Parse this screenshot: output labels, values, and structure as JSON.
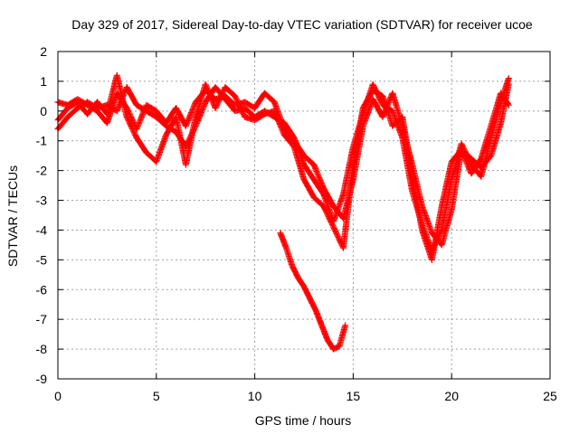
{
  "chart_data": {
    "type": "scatter",
    "title": "Day 329 of 2017, Sidereal Day-to-day VTEC variation (SDTVAR) for receiver ucoe",
    "xlabel": "GPS time / hours",
    "ylabel": "SDTVAR / TECUs",
    "xlim": [
      0,
      25
    ],
    "ylim": [
      -9,
      2
    ],
    "xticks": [
      "0",
      "5",
      "10",
      "15",
      "20",
      "25"
    ],
    "yticks": [
      "2",
      "1",
      "0",
      "-1",
      "-2",
      "-3",
      "-4",
      "-5",
      "-6",
      "-7",
      "-8",
      "-9"
    ],
    "grid": true,
    "marker": "+",
    "color": "#ff0000",
    "series": [
      {
        "x": [
          0,
          0.5,
          1,
          1.5,
          2,
          2.5,
          3,
          3.5,
          4,
          4.5,
          5,
          5.5,
          6,
          6.5,
          7,
          7.5,
          8,
          8.5,
          9,
          9.5,
          10,
          10.5,
          11,
          11.5,
          12,
          12.5,
          13,
          13.5,
          14,
          14.5,
          15,
          15.5,
          16,
          16.5,
          17,
          17.5,
          18,
          18.5,
          19,
          19.5,
          20,
          20.5,
          21,
          21.5,
          22,
          22.5,
          22.9
        ],
        "values": [
          0.3,
          0.2,
          0.4,
          0.2,
          0.0,
          -0.4,
          0.6,
          0.1,
          -0.6,
          0.2,
          0.0,
          -0.4,
          0.1,
          -0.5,
          0.3,
          0.7,
          0.4,
          0.5,
          0.2,
          0.3,
          0.1,
          0.6,
          0.3,
          -0.6,
          -1.0,
          -1.5,
          -1.8,
          -2.6,
          -3.2,
          -3.6,
          -2.3,
          -0.5,
          0.4,
          -0.2,
          0.6,
          -0.5,
          -1.8,
          -3.2,
          -4.1,
          -4.5,
          -3.3,
          -1.3,
          -1.6,
          -1.9,
          -1.5,
          -0.4,
          0.9
        ]
      },
      {
        "x": [
          0,
          0.5,
          1,
          1.5,
          2,
          2.5,
          3,
          3.5,
          4,
          4.5,
          5,
          5.5,
          6,
          6.5,
          7,
          7.5,
          8,
          8.5,
          9,
          9.5,
          10,
          10.5,
          11,
          11.5,
          12,
          12.5,
          13,
          13.5,
          14,
          14.5,
          15,
          15.5,
          16,
          16.5,
          17,
          17.5,
          18,
          18.5,
          19,
          19.5,
          20,
          20.5,
          21,
          21.5,
          22,
          22.5,
          22.9
        ],
        "values": [
          -0.6,
          -0.2,
          0.1,
          0.3,
          0.1,
          0.2,
          0.0,
          0.8,
          0.2,
          0.0,
          -0.2,
          -0.5,
          -0.7,
          -1.2,
          -0.5,
          0.3,
          0.8,
          0.4,
          0.0,
          0.1,
          -0.2,
          0.0,
          -0.2,
          -0.4,
          -0.9,
          -1.8,
          -2.3,
          -2.8,
          -3.7,
          -2.8,
          -1.2,
          -0.1,
          0.9,
          0.2,
          0.0,
          -0.9,
          -2.7,
          -3.8,
          -4.7,
          -4.0,
          -2.3,
          -1.1,
          -1.8,
          -2.2,
          -0.9,
          0.3,
          1.1
        ]
      },
      {
        "x": [
          0,
          0.5,
          1,
          1.5,
          2,
          2.5,
          3,
          3.5,
          4,
          4.5,
          5,
          5.5,
          6,
          6.5,
          7,
          7.5,
          8,
          8.5,
          9,
          9.5,
          10,
          10.5,
          11,
          11.5,
          12,
          12.5,
          13,
          13.5,
          14,
          14.5,
          15,
          15.5,
          16,
          16.5,
          17,
          17.5,
          18,
          18.5,
          19,
          19.5,
          20,
          20.5,
          21,
          21.5,
          22,
          22.5,
          22.9
        ],
        "values": [
          -0.3,
          0.1,
          0.3,
          -0.1,
          0.3,
          -0.1,
          1.2,
          -0.2,
          -0.9,
          -1.4,
          -1.7,
          -0.8,
          -0.2,
          -1.8,
          -0.2,
          0.9,
          0.1,
          0.8,
          0.5,
          -0.2,
          -0.3,
          -0.1,
          0.0,
          -0.8,
          -1.2,
          -2.3,
          -2.9,
          -3.2,
          -3.9,
          -4.6,
          -1.8,
          0.1,
          0.7,
          0.5,
          -0.5,
          -0.2,
          -2.2,
          -4.0,
          -5.0,
          -3.2,
          -1.7,
          -1.3,
          -2.1,
          -1.6,
          -0.5,
          0.6,
          0.2
        ]
      },
      {
        "x": [
          11.3,
          11.6,
          11.9,
          12.2,
          12.5,
          12.8,
          13.1,
          13.4,
          13.7,
          14.0,
          14.3,
          14.6
        ],
        "values": [
          -4.1,
          -4.6,
          -5.2,
          -5.6,
          -5.9,
          -6.3,
          -6.7,
          -7.2,
          -7.7,
          -8.0,
          -7.9,
          -7.2
        ]
      }
    ]
  }
}
